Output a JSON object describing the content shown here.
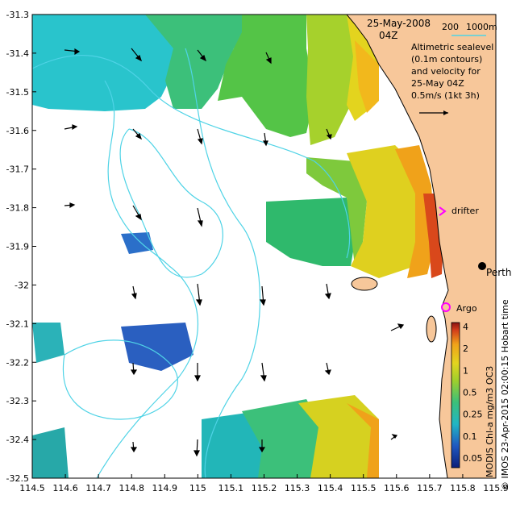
{
  "title": {
    "date": "25-May-2008",
    "time": "04Z"
  },
  "depth_legend": {
    "label_200": "200",
    "label_1000": "1000m"
  },
  "annotation": {
    "line1": "Altimetric sealevel",
    "line2": "(0.1m contours)",
    "line3": "and velocity for",
    "line4": "25-May 04Z",
    "line5": "0.5m/s (1kt 3h)"
  },
  "places": {
    "perth": "Perth",
    "drifter": "drifter",
    "argo": "Argo"
  },
  "colorbar": {
    "label": "MODIS Chl-a mg/m3 OC3",
    "ticks": [
      "4",
      "2",
      "1",
      "0.5",
      "0.25",
      "0.1",
      "0.05"
    ]
  },
  "credit": "© IMOS 23-Apr-2015 02:00:15 Hobart time",
  "x_ticks": [
    "114.5",
    "114.6",
    "114.7",
    "114.8",
    "114.9",
    "115",
    "115.1",
    "115.2",
    "115.3",
    "115.4",
    "115.5",
    "115.6",
    "115.7",
    "115.8",
    "115.9"
  ],
  "y_ticks": [
    "-31.3",
    "-31.4",
    "-31.5",
    "-31.6",
    "-31.7",
    "-31.8",
    "-31.9",
    "-32",
    "-32.1",
    "-32.2",
    "-32.3",
    "-32.4",
    "-32.5"
  ],
  "colors": {
    "land": "#f7c79a",
    "contour": "#4fd3e6",
    "drifter_marker": "#ff00ff",
    "argo_marker": "#ff00ff"
  }
}
